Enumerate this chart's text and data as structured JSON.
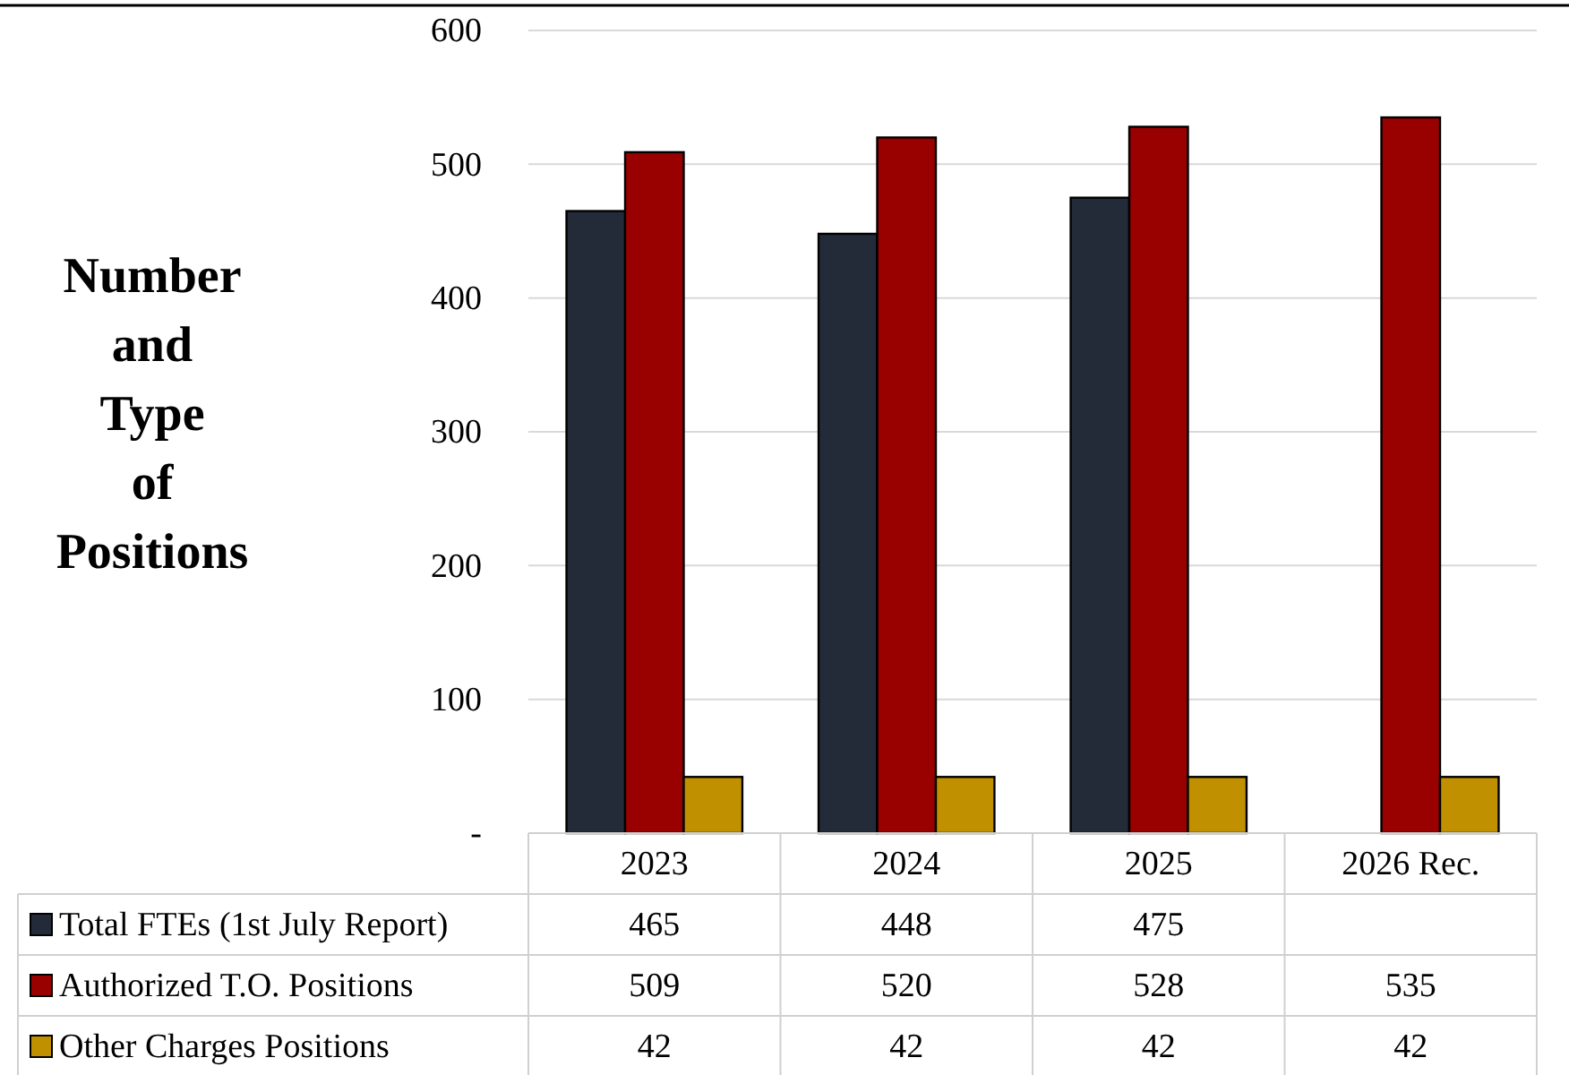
{
  "chart_data": {
    "type": "bar",
    "ylabel": "Number and Type of Positions",
    "categories": [
      "2023",
      "2024",
      "2025",
      "2026 Rec."
    ],
    "series": [
      {
        "name": "Total FTEs (1st July Report)",
        "color": "#232b38",
        "values": [
          465,
          448,
          475,
          null
        ]
      },
      {
        "name": "Authorized T.O. Positions",
        "color": "#990000",
        "values": [
          509,
          520,
          528,
          535
        ]
      },
      {
        "name": "Other Charges Positions",
        "color": "#c09000",
        "values": [
          42,
          42,
          42,
          42
        ]
      }
    ],
    "ylim": [
      0,
      600
    ],
    "yticks": [
      {
        "value": 0,
        "label": "-"
      },
      100,
      200,
      300,
      400,
      500,
      600
    ],
    "grid": "y",
    "legend": "bottom",
    "data_labels": true
  }
}
